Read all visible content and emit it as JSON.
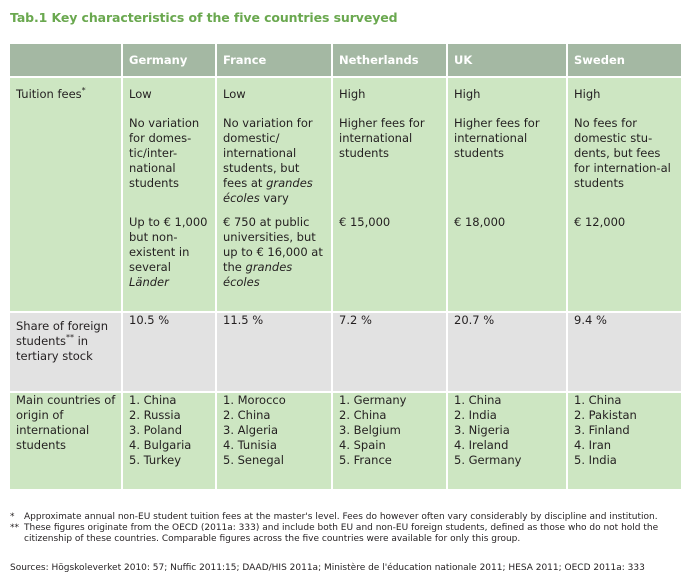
{
  "title": "Tab.1 Key characteristics of the five countries surveyed",
  "columns": [
    "Germany",
    "France",
    "Netherlands",
    "UK",
    "Sweden"
  ],
  "rows": {
    "tuition": {
      "label": "Tuition fees",
      "label_mark": "*",
      "level": [
        "Low",
        "Low",
        "High",
        "High",
        "High"
      ],
      "variation": {
        "germany": "No variation for domes-tic/inter-national students",
        "france_pre": "No variation for domestic/ international students, but fees at ",
        "france_em": "grandes écoles",
        "france_post": " vary",
        "netherlands": "Higher fees for international students",
        "uk": "Higher fees for international students",
        "sweden": "No fees for domestic stu-dents, but fees for internation-al students"
      },
      "amount": {
        "germany_pre": "Up to € 1,000 but non-existent in several ",
        "germany_em": "Länder",
        "france_pre": "€ 750 at public universities, but up to € 16,000 at the ",
        "france_em": "grandes écoles",
        "netherlands": "€ 15,000",
        "uk": "€ 18,000",
        "sweden": "€ 12,000"
      }
    },
    "share": {
      "label_pre": "Share of foreign students",
      "label_mark": "**",
      "label_post": " in tertiary stock",
      "values": [
        "10.5 %",
        "11.5 %",
        "7.2 %",
        "20.7 %",
        "9.4 %"
      ]
    },
    "origins": {
      "label": "Main countries of origin of international students",
      "germany": [
        "1. China",
        "2. Russia",
        "3. Poland",
        "4. Bulgaria",
        "5. Turkey"
      ],
      "france": [
        "1. Morocco",
        "2. China",
        "3. Algeria",
        "4. Tunisia",
        "5. Senegal"
      ],
      "netherlands": [
        "1. Germany",
        "2. China",
        "3. Belgium",
        "4. Spain",
        "5. France"
      ],
      "uk": [
        "1. China",
        "2. India",
        "3. Nigeria",
        "4. Ireland",
        "5. Germany"
      ],
      "sweden": [
        "1. China",
        "2. Pakistan",
        "3. Finland",
        "4. Iran",
        "5. India"
      ]
    }
  },
  "footnotes": [
    {
      "mark": "*",
      "text": "Approximate annual non-EU student tuition fees at the master's level. Fees do however often vary considerably by discipline and institution."
    },
    {
      "mark": "**",
      "text": "These figures originate from the OECD (2011a: 333) and include both EU and non-EU foreign students, defined as those who do not hold the citizenship of these countries. Comparable figures across the five countries were available for only this group."
    }
  ],
  "sources": "Sources: Högskoleverket 2010: 57; Nuffic 2011:15; DAAD/HIS 2011a; Ministère de l'éducation nationale 2011; HESA 2011; OECD 2011a: 333",
  "colors": {
    "title": "#6aa84f",
    "header_bg": "#a4b8a3",
    "row_green": "#cde6c2",
    "row_grey": "#e2e2e2"
  }
}
